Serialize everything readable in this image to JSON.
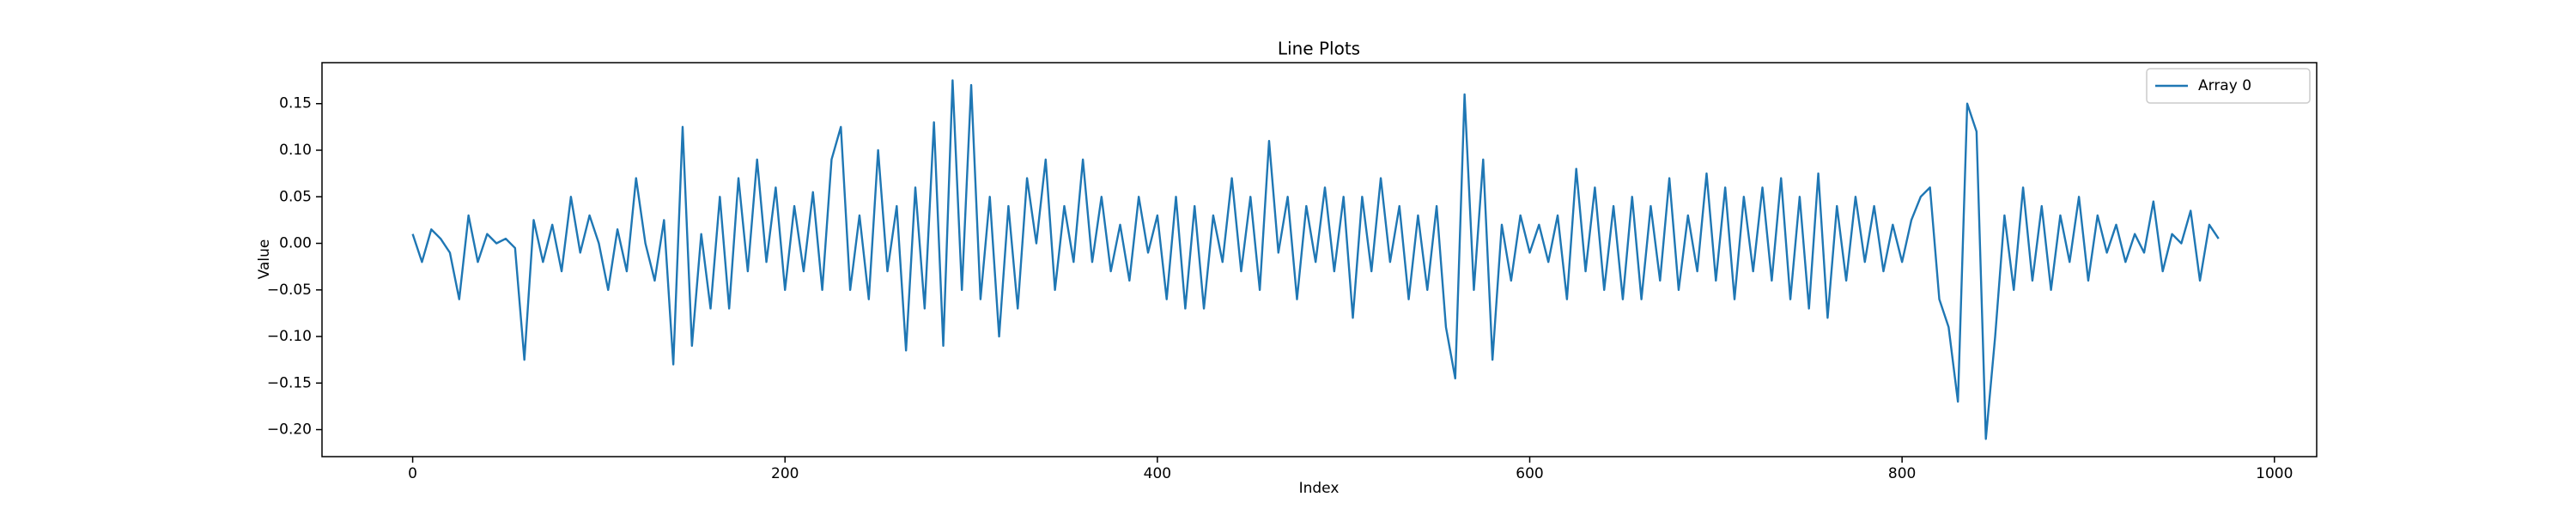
{
  "chart_data": {
    "type": "line",
    "title": "Line Plots",
    "x_label": "Index",
    "y_label": "Value",
    "x": [
      0,
      5,
      10,
      15,
      20,
      25,
      30,
      35,
      40,
      45,
      50,
      55,
      60,
      65,
      70,
      75,
      80,
      85,
      90,
      95,
      100,
      105,
      110,
      115,
      120,
      125,
      130,
      135,
      140,
      145,
      150,
      155,
      160,
      165,
      170,
      175,
      180,
      185,
      190,
      195,
      200,
      205,
      210,
      215,
      220,
      225,
      230,
      235,
      240,
      245,
      250,
      255,
      260,
      265,
      270,
      275,
      280,
      285,
      290,
      295,
      300,
      305,
      310,
      315,
      320,
      325,
      330,
      335,
      340,
      345,
      350,
      355,
      360,
      365,
      370,
      375,
      380,
      385,
      390,
      395,
      400,
      405,
      410,
      415,
      420,
      425,
      430,
      435,
      440,
      445,
      450,
      455,
      460,
      465,
      470,
      475,
      480,
      485,
      490,
      495,
      500,
      505,
      510,
      515,
      520,
      525,
      530,
      535,
      540,
      545,
      550,
      555,
      560,
      565,
      570,
      575,
      580,
      585,
      590,
      595,
      600,
      605,
      610,
      615,
      620,
      625,
      630,
      635,
      640,
      645,
      650,
      655,
      660,
      665,
      670,
      675,
      680,
      685,
      690,
      695,
      700,
      705,
      710,
      715,
      720,
      725,
      730,
      735,
      740,
      745,
      750,
      755,
      760,
      765,
      770,
      775,
      780,
      785,
      790,
      795,
      800,
      805,
      810,
      815,
      820,
      825,
      830,
      835,
      840,
      845,
      850,
      855,
      860,
      865,
      870,
      875,
      880,
      885,
      890,
      895,
      900,
      905,
      910,
      915,
      920,
      925,
      930,
      935,
      940,
      945,
      950,
      955,
      960,
      965,
      970
    ],
    "series": [
      {
        "name": "Array 0",
        "color": "#1f77b4",
        "values": [
          0.01,
          -0.02,
          0.015,
          0.005,
          -0.01,
          -0.06,
          0.03,
          -0.02,
          0.01,
          0.0,
          0.005,
          -0.005,
          -0.125,
          0.025,
          -0.02,
          0.02,
          -0.03,
          0.05,
          -0.01,
          0.03,
          0.0,
          -0.05,
          0.015,
          -0.03,
          0.07,
          0.0,
          -0.04,
          0.025,
          -0.13,
          0.125,
          -0.11,
          0.01,
          -0.07,
          0.05,
          -0.07,
          0.07,
          -0.03,
          0.09,
          -0.02,
          0.06,
          -0.05,
          0.04,
          -0.03,
          0.055,
          -0.05,
          0.09,
          0.125,
          -0.05,
          0.03,
          -0.06,
          0.1,
          -0.03,
          0.04,
          -0.115,
          0.06,
          -0.07,
          0.13,
          -0.11,
          0.175,
          -0.05,
          0.17,
          -0.06,
          0.05,
          -0.1,
          0.04,
          -0.07,
          0.07,
          0.0,
          0.09,
          -0.05,
          0.04,
          -0.02,
          0.09,
          -0.02,
          0.05,
          -0.03,
          0.02,
          -0.04,
          0.05,
          -0.01,
          0.03,
          -0.06,
          0.05,
          -0.07,
          0.04,
          -0.07,
          0.03,
          -0.02,
          0.07,
          -0.03,
          0.05,
          -0.05,
          0.11,
          -0.01,
          0.05,
          -0.06,
          0.04,
          -0.02,
          0.06,
          -0.03,
          0.05,
          -0.08,
          0.05,
          -0.03,
          0.07,
          -0.02,
          0.04,
          -0.06,
          0.03,
          -0.05,
          0.04,
          -0.09,
          -0.145,
          0.16,
          -0.05,
          0.09,
          -0.125,
          0.02,
          -0.04,
          0.03,
          -0.01,
          0.02,
          -0.02,
          0.03,
          -0.06,
          0.08,
          -0.03,
          0.06,
          -0.05,
          0.04,
          -0.06,
          0.05,
          -0.06,
          0.04,
          -0.04,
          0.07,
          -0.05,
          0.03,
          -0.03,
          0.075,
          -0.04,
          0.06,
          -0.06,
          0.05,
          -0.03,
          0.06,
          -0.04,
          0.07,
          -0.06,
          0.05,
          -0.07,
          0.075,
          -0.08,
          0.04,
          -0.04,
          0.05,
          -0.02,
          0.04,
          -0.03,
          0.02,
          -0.02,
          0.025,
          0.05,
          0.06,
          -0.06,
          -0.09,
          -0.17,
          0.15,
          0.12,
          -0.21,
          -0.1,
          0.03,
          -0.05,
          0.06,
          -0.04,
          0.04,
          -0.05,
          0.03,
          -0.02,
          0.05,
          -0.04,
          0.03,
          -0.01,
          0.02,
          -0.02,
          0.01,
          -0.01,
          0.045,
          -0.03,
          0.01,
          0.0,
          0.035,
          -0.04,
          0.02,
          0.005
        ]
      }
    ],
    "xlim": [
      -48.7,
      1022.7
    ],
    "ylim": [
      -0.229,
      0.194
    ],
    "xticks": [
      0,
      200,
      400,
      600,
      800,
      1000
    ],
    "yticks": [
      {
        "value": -0.2,
        "label": "−0.20"
      },
      {
        "value": -0.15,
        "label": "−0.15"
      },
      {
        "value": -0.1,
        "label": "−0.10"
      },
      {
        "value": -0.05,
        "label": "−0.05"
      },
      {
        "value": 0,
        "label": "0.00"
      },
      {
        "value": 0.05,
        "label": "0.05"
      },
      {
        "value": 0.1,
        "label": "0.10"
      },
      {
        "value": 0.15,
        "label": "0.15"
      }
    ],
    "grid": false,
    "legend": "upper right"
  }
}
